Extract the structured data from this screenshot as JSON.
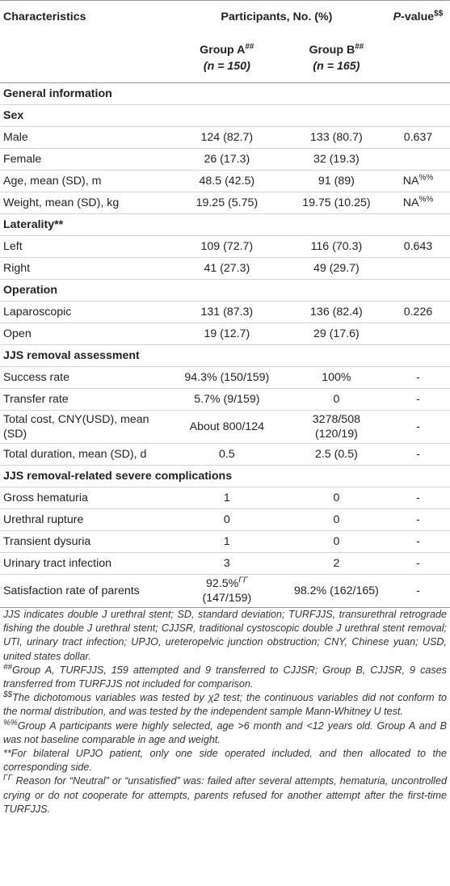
{
  "header": {
    "characteristics": "Characteristics",
    "participants": "Participants, No. (%)",
    "pvalue_p": "P",
    "pvalue_rest": "-value",
    "pvalue_sup": "$$",
    "group_a": "Group A",
    "group_a_sup": "##",
    "group_a_n": "(n = 150)",
    "group_b": "Group B",
    "group_b_sup": "##",
    "group_b_n": "(n = 165)"
  },
  "rows": [
    {
      "type": "section",
      "label": "General information"
    },
    {
      "type": "section",
      "label": "Sex"
    },
    {
      "type": "data",
      "label": "Male",
      "a": "124 (82.7)",
      "b": "133 (80.7)",
      "p": "0.637"
    },
    {
      "type": "data",
      "label": "Female",
      "a": "26 (17.3)",
      "b": "32 (19.3)",
      "p": ""
    },
    {
      "type": "data",
      "label": "Age, mean (SD), m",
      "a": "48.5 (42.5)",
      "b": "91 (89)",
      "p": "NA",
      "p_sup": "%%"
    },
    {
      "type": "data",
      "label": "Weight, mean (SD), kg",
      "a": "19.25 (5.75)",
      "b": "19.75 (10.25)",
      "p": "NA",
      "p_sup": "%%"
    },
    {
      "type": "section",
      "label": "Laterality**"
    },
    {
      "type": "data",
      "label": "Left",
      "a": "109 (72.7)",
      "b": "116 (70.3)",
      "p": "0.643"
    },
    {
      "type": "data",
      "label": "Right",
      "a": "41 (27.3)",
      "b": "49 (29.7)",
      "p": ""
    },
    {
      "type": "section",
      "label": "Operation"
    },
    {
      "type": "data",
      "label": "Laparoscopic",
      "a": "131 (87.3)",
      "b": "136 (82.4)",
      "p": "0.226"
    },
    {
      "type": "data",
      "label": "Open",
      "a": "19 (12.7)",
      "b": "29 (17.6)",
      "p": ""
    },
    {
      "type": "section",
      "label": "JJS removal assessment"
    },
    {
      "type": "data",
      "label": "Success rate",
      "a": "94.3% (150/159)",
      "b": "100%",
      "p": "-"
    },
    {
      "type": "data",
      "label": "Transfer rate",
      "a": "5.7% (9/159)",
      "b": "0",
      "p": "-"
    },
    {
      "type": "data",
      "label": "Total cost, CNY(USD), mean (SD)",
      "a": "About 800/124",
      "b": "3278/508 (120/19)",
      "p": "-"
    },
    {
      "type": "data",
      "label": "Total duration, mean (SD), d",
      "a": "0.5",
      "b": "2.5 (0.5)",
      "p": "-"
    },
    {
      "type": "section",
      "label": "JJS removal-related severe complications"
    },
    {
      "type": "data",
      "label": "Gross hematuria",
      "a": "1",
      "b": "0",
      "p": "-"
    },
    {
      "type": "data",
      "label": "Urethral rupture",
      "a": "0",
      "b": "0",
      "p": "-"
    },
    {
      "type": "data",
      "label": "Transient dysuria",
      "a": "1",
      "b": "0",
      "p": "-"
    },
    {
      "type": "data",
      "label": "Urinary tract infection",
      "a": "3",
      "b": "2",
      "p": "-"
    },
    {
      "type": "data",
      "label": "Satisfaction rate of parents",
      "a": "92.5%",
      "a_sup": "ΓΓ",
      "a2": "(147/159)",
      "b": "98.2% (162/165)",
      "p": "-"
    }
  ],
  "footnotes": {
    "f1": "JJS indicates double J urethral stent; SD, standard deviation; TURFJJS, transurethral retrograde fishing the double J urethral stent; CJJSR, traditional cystoscopic double J urethral stent removal; UTI, urinary tract infection; UPJO, ureteropelvic junction obstruction; CNY, Chinese yuan; USD, united states dollar.",
    "f2_mark": "##",
    "f2": "Group A, TURFJJS, 159 attempted and 9 transferred to CJJSR; Group B, CJJSR, 9 cases transferred from TURFJJS not included for comparison.",
    "f3_mark": "$$",
    "f3": "The dichotomous variables was tested by χ2 test; the continuous variables did not conform to the normal distribution, and was tested by the independent sample Mann-Whitney U test.",
    "f4_mark": "%%",
    "f4": "Group A participants were highly selected, age >6 month and <12 years old. Group A and B was not baseline comparable in age and weight.",
    "f5": "**For bilateral UPJO patient, only one side operated included, and then allocated to the corresponding side.",
    "f6_mark": "ΓΓ",
    "f6": " Reason for “Neutral” or “unsatisfied” was: failed after several attempts, hematuria, uncontrolled crying or do not cooperate for attempts, parents refused for another attempt after the first-time TURFJJS."
  }
}
